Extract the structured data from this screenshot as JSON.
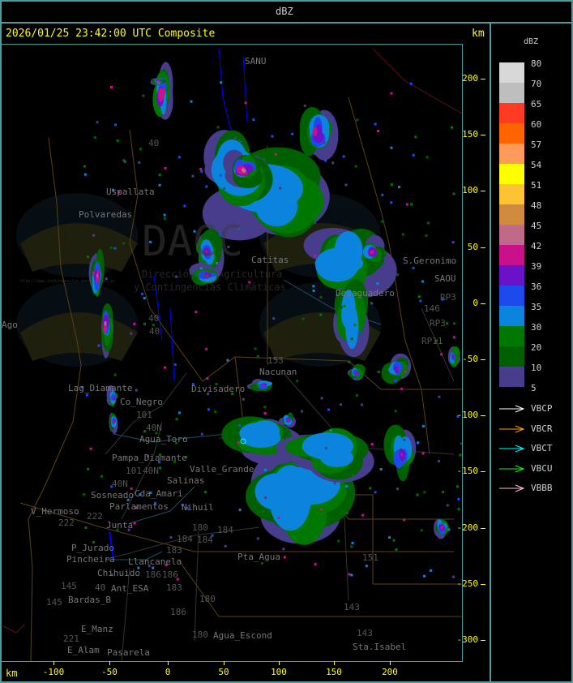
{
  "header": {
    "title": "dBZ"
  },
  "map": {
    "timestamp": "2026/01/25 23:42:00 UTC Composite",
    "y_unit": "km",
    "x_unit": "km",
    "x_ticks": [
      "-100",
      "-50",
      "0",
      "50",
      "100",
      "150",
      "200"
    ],
    "y_ticks": [
      "200",
      "150",
      "100",
      "50",
      "0",
      "-50",
      "-100",
      "-150",
      "-200",
      "-250",
      "-300"
    ],
    "watermark": {
      "logo": "DACC",
      "line1": "Dirección de Agricultura",
      "line2": "y Contingencias Climáticas",
      "url": "http://www.contingencias.mendoza.gov.ar"
    },
    "places": [
      "Uspallata",
      "Polvaredas",
      "Lag_Diamante",
      "Co_Negro",
      "Divisadero",
      "Agua_Toro",
      "Pampa_Diamante",
      "Salinas",
      "Cda_Amari",
      "Parlamentos",
      "Sosneado",
      "V_Hermoso",
      "Junta",
      "P_Jurado",
      "Pincheira",
      "Llancanelo",
      "Chihuido",
      "Ant_ESA",
      "Bardas_B",
      "E_Manz",
      "E_Alam",
      "Pasarela",
      "Agua_Escond",
      "Nihuil",
      "Valle_Grande",
      "Nacunan",
      "S.Geronimo",
      "SAOU",
      "Desaguadero",
      "Catitas",
      "Pta_Agua",
      "Sta.Isabel",
      "SANU",
      "Ago"
    ],
    "routes": [
      "40",
      "101",
      "40N",
      "40N",
      "101",
      "40N",
      "184",
      "184",
      "184",
      "180",
      "180",
      "180",
      "183",
      "183",
      "186",
      "186",
      "186",
      "222",
      "222",
      "145",
      "145",
      "221",
      "40",
      "153",
      "146",
      "143",
      "143",
      "151",
      "RP3",
      "RP3",
      "RP11",
      "40",
      "40"
    ]
  },
  "legend": {
    "title": "dBZ",
    "scale": [
      {
        "value": "80",
        "color": "#d8d8d8"
      },
      {
        "value": "70",
        "color": "#bebebe"
      },
      {
        "value": "65",
        "color": "#ff3a22"
      },
      {
        "value": "60",
        "color": "#ff6400"
      },
      {
        "value": "57",
        "color": "#ff9a5a"
      },
      {
        "value": "54",
        "color": "#ffff00"
      },
      {
        "value": "51",
        "color": "#fcc433"
      },
      {
        "value": "48",
        "color": "#d08a3e"
      },
      {
        "value": "45",
        "color": "#c06a8a"
      },
      {
        "value": "42",
        "color": "#c8118a"
      },
      {
        "value": "39",
        "color": "#6a12c8"
      },
      {
        "value": "36",
        "color": "#1c4aec"
      },
      {
        "value": "35",
        "color": "#0a84dc"
      },
      {
        "value": "30",
        "color": "#007800"
      },
      {
        "value": "20",
        "color": "#006000"
      },
      {
        "value": "10",
        "color": "#483c8c"
      }
    ],
    "scale_bottom": "5",
    "radars": [
      {
        "name": "VBCP",
        "color": "#ffffff"
      },
      {
        "name": "VBCR",
        "color": "#ffa500"
      },
      {
        "name": "VBCT",
        "color": "#00ffff"
      },
      {
        "name": "VBCU",
        "color": "#00ff00"
      },
      {
        "name": "VBBB",
        "color": "#ffc0cb"
      }
    ]
  }
}
